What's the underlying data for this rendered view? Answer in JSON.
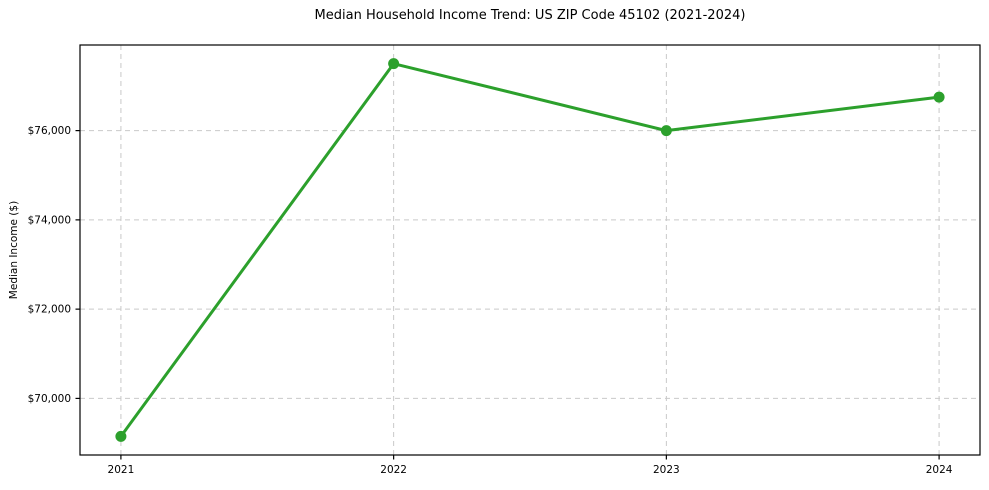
{
  "chart_data": {
    "type": "line",
    "title": "Median Household Income Trend: US ZIP Code 45102 (2021-2024)",
    "xlabel": "",
    "ylabel": "Median Income ($)",
    "x": [
      2021,
      2022,
      2023,
      2024
    ],
    "series": [
      {
        "name": "Median Household Income",
        "values": [
          69150,
          77500,
          76000,
          76750
        ]
      }
    ],
    "xticks": [
      2021,
      2022,
      2023,
      2024
    ],
    "xtick_labels": [
      "2021",
      "2022",
      "2023",
      "2024"
    ],
    "yticks": [
      70000,
      72000,
      74000,
      76000
    ],
    "ytick_labels": [
      "$70,000",
      "$72,000",
      "$74,000",
      "$76,000"
    ],
    "xlim": [
      2020.85,
      2024.15
    ],
    "ylim": [
      68732,
      77918
    ],
    "grid": true,
    "grid_style": "dashed",
    "legend_visible": false,
    "colors": {
      "line": "#2ca02c",
      "marker": "#2ca02c",
      "grid": "#c9c9c9",
      "spine": "#000000",
      "background": "#ffffff",
      "text": "#000000"
    }
  }
}
